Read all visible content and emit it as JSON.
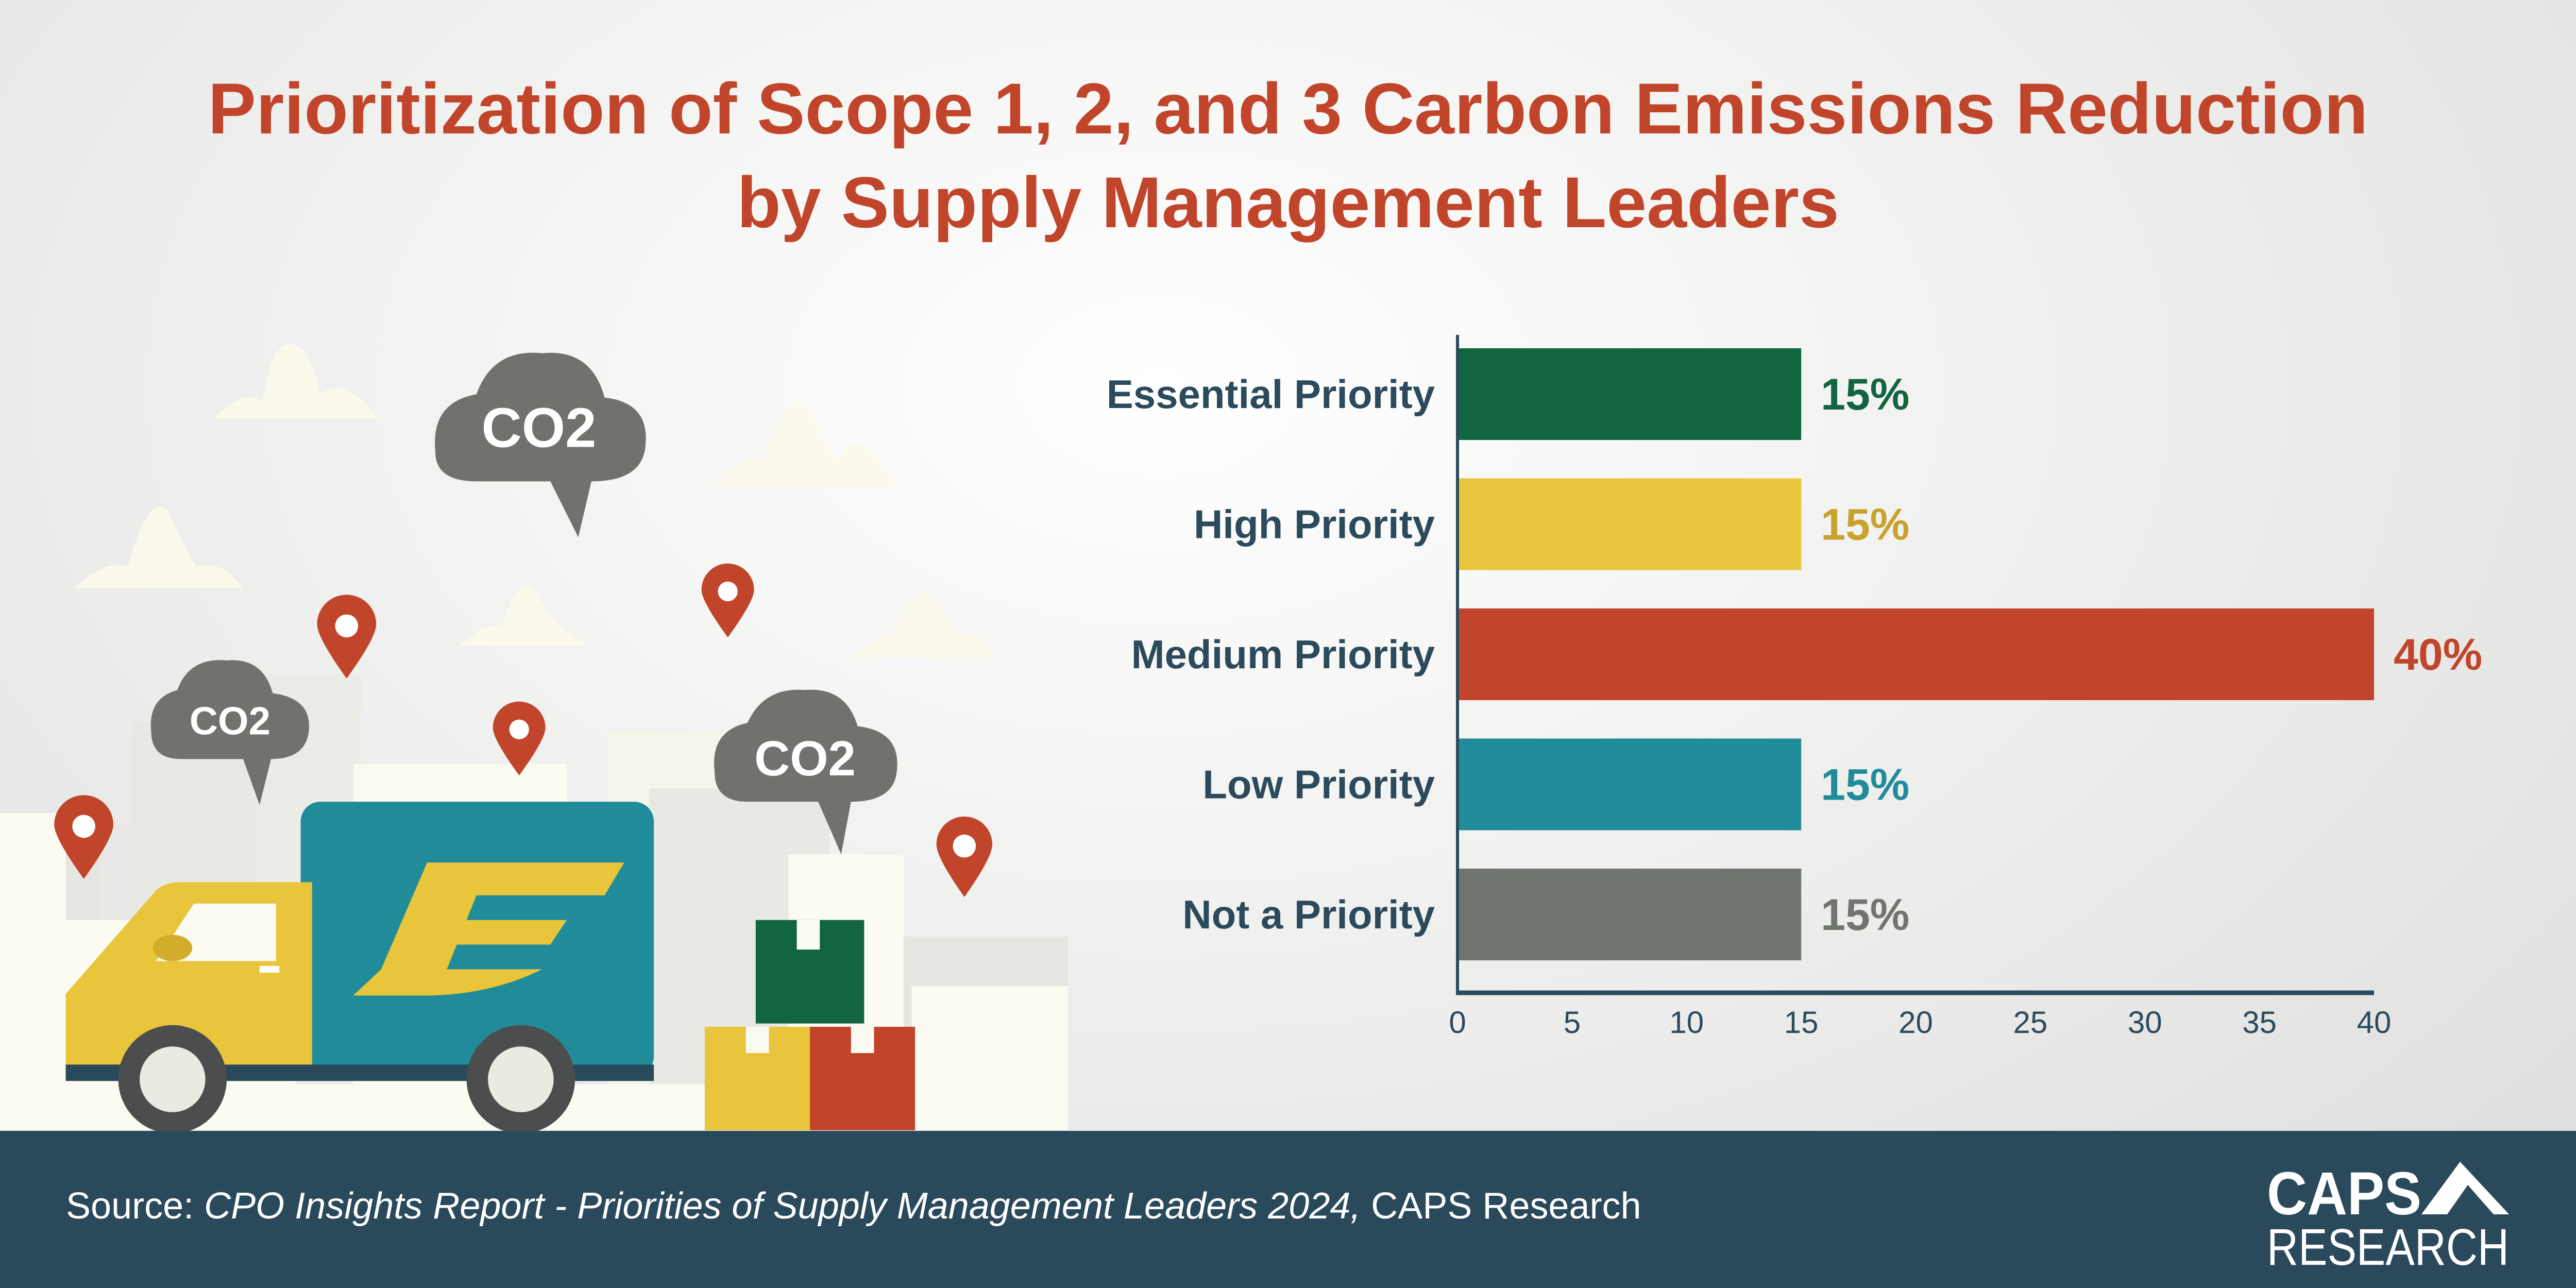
{
  "title": {
    "line1": "Prioritization of Scope 1, 2, and 3 Carbon Emissions Reduction",
    "line2": "by Supply Management Leaders"
  },
  "illustration": {
    "bubbles": [
      "CO2",
      "CO2",
      "CO2"
    ]
  },
  "chart_data": {
    "type": "bar",
    "orientation": "horizontal",
    "categories": [
      "Essential Priority",
      "High Priority",
      "Medium Priority",
      "Low Priority",
      "Not a Priority"
    ],
    "values": [
      15,
      15,
      40,
      15,
      15
    ],
    "value_labels": [
      "15%",
      "15%",
      "40%",
      "15%",
      "15%"
    ],
    "colors": [
      "#11653f",
      "#e8c53a",
      "#c1452a",
      "#218c99",
      "#717570"
    ],
    "label_colors": [
      "#11653f",
      "#c9a22c",
      "#c1452a",
      "#218c99",
      "#717570"
    ],
    "xlim": [
      0,
      40
    ],
    "xticks": [
      "0",
      "5",
      "10",
      "15",
      "20",
      "25",
      "30",
      "35",
      "40"
    ],
    "grid": false
  },
  "footer": {
    "source_prefix": "Source: ",
    "source_title": "CPO Insights Report - Priorities of Supply Management Leaders 2024,",
    "source_suffix": " CAPS Research",
    "logo_top": "CAPS",
    "logo_bottom": "RESEARCH"
  },
  "colors": {
    "title": "#c1452a",
    "footer_bg": "#2a4a5c",
    "axis": "#2b4a5c"
  }
}
